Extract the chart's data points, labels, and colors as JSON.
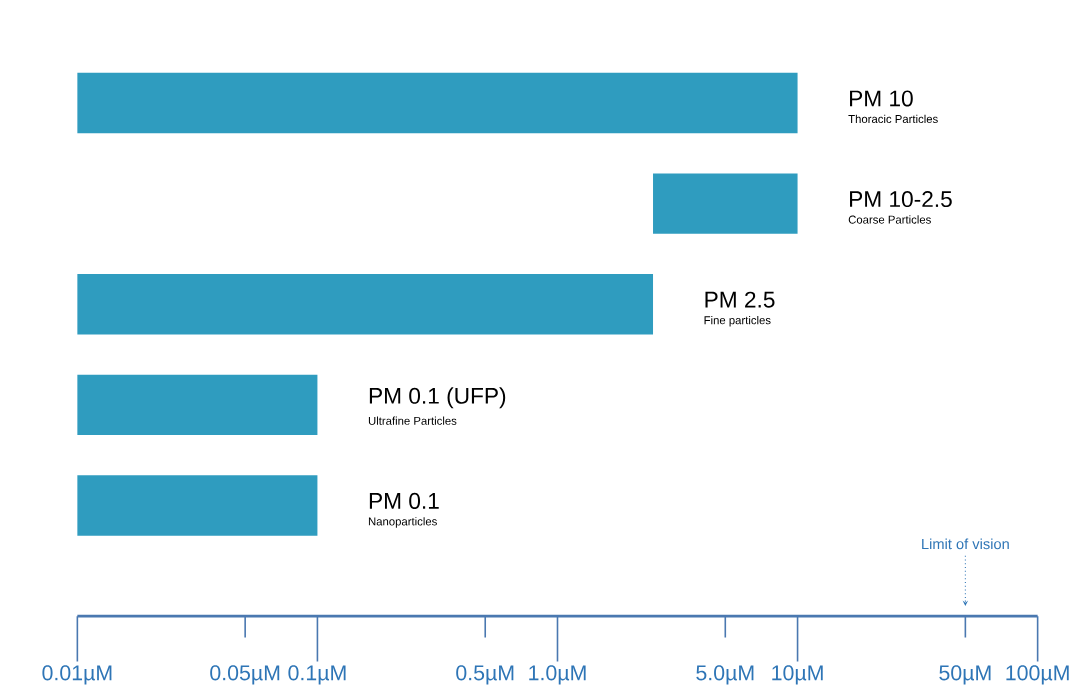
{
  "chart_data": {
    "type": "bar",
    "orientation": "horizontal",
    "log": "x",
    "tick_labels": "x",
    "grid": false,
    "color": "#2f9cbf",
    "categories": [
      "PM 10",
      "PM 10-2.5",
      "PM 2.5",
      "PM 0.1 (UFP)",
      "PM 0.1"
    ],
    "base": [
      0.01,
      2.5,
      0.01,
      0.01,
      0.01
    ],
    "values": [
      9.99,
      7.5,
      2.49,
      0.09,
      0.09
    ],
    "xlim": [
      0.01,
      100
    ],
    "xticks": [
      {
        "value": 0.01,
        "label": "0.01µM"
      },
      {
        "value": 0.05,
        "label": "0.05µM"
      },
      {
        "value": 0.1,
        "label": "0.1µM"
      },
      {
        "value": 0.5,
        "label": "0.5µM"
      },
      {
        "value": 1,
        "label": "1.0µM"
      },
      {
        "value": 5,
        "label": "5.0µM"
      },
      {
        "value": 10,
        "label": "10µM"
      },
      {
        "value": 50,
        "label": "50µM"
      },
      {
        "value": 100,
        "label": "100µM"
      }
    ],
    "ref_lines": [
      {
        "axis": "x",
        "value": 50,
        "label": "Limit of vision",
        "line_style": "dotted",
        "color": "#2e75b6"
      }
    ],
    "annotations": [
      "Thoracic Particles",
      "Coarse  Particles",
      "Fine particles",
      "Ultrafine Particles",
      "Nanoparticles"
    ]
  }
}
